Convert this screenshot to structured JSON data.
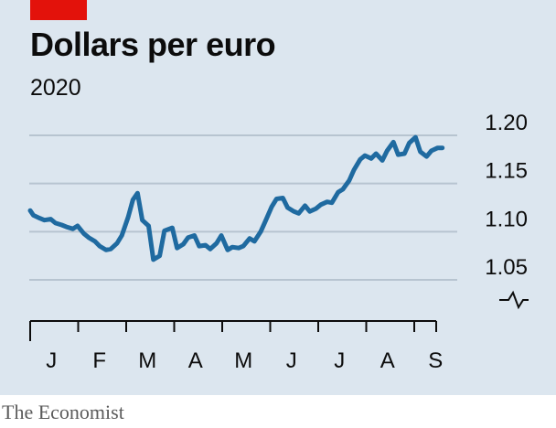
{
  "header": {
    "title": "Dollars per euro",
    "subtitle": "2020"
  },
  "footer": {
    "credit": "The Economist"
  },
  "colors": {
    "background": "#dce6ef",
    "line": "#1f6aa0",
    "grid": "#b7c4d0",
    "accent": "#e3120b"
  },
  "chart_data": {
    "type": "line",
    "title": "Dollars per euro",
    "subtitle": "2020",
    "xlabel": "",
    "ylabel": "",
    "ylim": [
      1.05,
      1.2
    ],
    "yticks": [
      1.05,
      1.1,
      1.15,
      1.2
    ],
    "ytick_labels": [
      "1.05",
      "1.10",
      "1.15",
      "1.20"
    ],
    "month_labels": [
      "J",
      "F",
      "M",
      "A",
      "M",
      "J",
      "J",
      "A",
      "S"
    ],
    "axis_break_symbol": true,
    "grid": true,
    "series": [
      {
        "x": [
          "2020-01-01",
          "2020-01-03",
          "2020-01-07",
          "2020-01-10",
          "2020-01-14",
          "2020-01-17",
          "2020-01-21",
          "2020-01-24",
          "2020-01-28",
          "2020-01-31",
          "2020-02-04",
          "2020-02-07",
          "2020-02-11",
          "2020-02-14",
          "2020-02-18",
          "2020-02-21",
          "2020-02-25",
          "2020-02-28",
          "2020-03-03",
          "2020-03-06",
          "2020-03-09",
          "2020-03-12",
          "2020-03-16",
          "2020-03-19",
          "2020-03-23",
          "2020-03-26",
          "2020-03-31",
          "2020-04-03",
          "2020-04-07",
          "2020-04-10",
          "2020-04-14",
          "2020-04-17",
          "2020-04-21",
          "2020-04-24",
          "2020-04-28",
          "2020-05-01",
          "2020-05-05",
          "2020-05-08",
          "2020-05-12",
          "2020-05-15",
          "2020-05-19",
          "2020-05-22",
          "2020-05-26",
          "2020-05-29",
          "2020-06-02",
          "2020-06-05",
          "2020-06-09",
          "2020-06-12",
          "2020-06-16",
          "2020-06-19",
          "2020-06-23",
          "2020-06-26",
          "2020-06-30",
          "2020-07-03",
          "2020-07-07",
          "2020-07-10",
          "2020-07-14",
          "2020-07-17",
          "2020-07-21",
          "2020-07-24",
          "2020-07-28",
          "2020-07-31",
          "2020-08-04",
          "2020-08-07",
          "2020-08-11",
          "2020-08-14",
          "2020-08-18",
          "2020-08-21",
          "2020-08-25",
          "2020-08-28",
          "2020-09-01",
          "2020-09-04",
          "2020-09-08",
          "2020-09-11",
          "2020-09-15",
          "2020-09-18"
        ],
        "values": [
          1.122,
          1.117,
          1.114,
          1.112,
          1.113,
          1.109,
          1.107,
          1.105,
          1.103,
          1.106,
          1.098,
          1.094,
          1.09,
          1.085,
          1.081,
          1.082,
          1.088,
          1.096,
          1.115,
          1.133,
          1.14,
          1.112,
          1.106,
          1.071,
          1.075,
          1.101,
          1.104,
          1.083,
          1.087,
          1.094,
          1.096,
          1.085,
          1.086,
          1.082,
          1.088,
          1.096,
          1.081,
          1.084,
          1.083,
          1.085,
          1.093,
          1.09,
          1.1,
          1.111,
          1.126,
          1.134,
          1.135,
          1.125,
          1.121,
          1.119,
          1.127,
          1.121,
          1.124,
          1.128,
          1.131,
          1.13,
          1.141,
          1.144,
          1.153,
          1.164,
          1.175,
          1.179,
          1.176,
          1.181,
          1.174,
          1.184,
          1.193,
          1.18,
          1.181,
          1.192,
          1.198,
          1.183,
          1.178,
          1.184,
          1.187,
          1.187
        ]
      }
    ]
  }
}
